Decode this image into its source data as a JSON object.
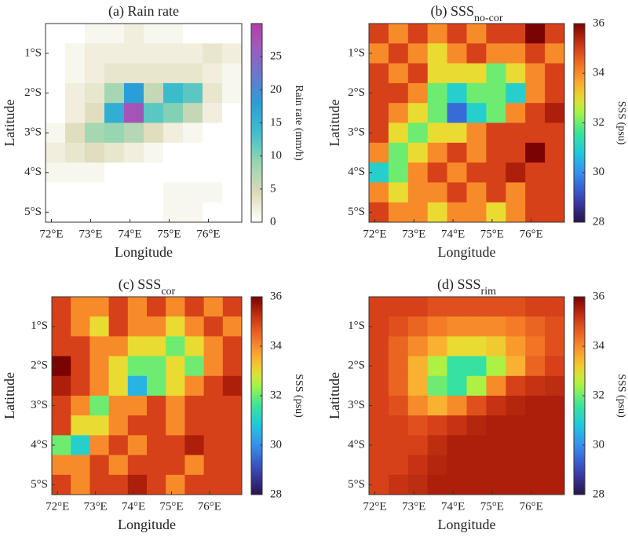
{
  "chart_data": [
    {
      "type": "heatmap",
      "title": "(a) Rain rate",
      "xlabel": "Longitude",
      "ylabel": "Latitude",
      "colorbar_label": "Rain rate (mm/h)",
      "colormap": "rain",
      "x": [
        72.1,
        72.6,
        73.1,
        73.6,
        74.1,
        74.6,
        75.1,
        75.6,
        76.1,
        76.6
      ],
      "y": [
        -0.5,
        -1.0,
        -1.5,
        -2.0,
        -2.5,
        -3.0,
        -3.5,
        -4.0,
        -4.5,
        -5.0
      ],
      "values": [
        [
          0,
          0,
          1,
          1,
          2,
          1,
          1,
          0,
          0,
          0
        ],
        [
          0,
          1,
          2,
          2,
          2,
          2,
          2,
          2,
          3,
          2
        ],
        [
          0,
          1,
          2,
          3,
          3,
          3,
          3,
          3,
          2,
          1
        ],
        [
          0,
          2,
          3,
          8,
          18,
          6,
          14,
          12,
          3,
          1
        ],
        [
          0,
          2,
          4,
          16,
          27,
          12,
          10,
          6,
          2,
          0
        ],
        [
          1,
          4,
          8,
          9,
          7,
          4,
          2,
          1,
          0,
          0
        ],
        [
          2,
          3,
          4,
          3,
          2,
          1,
          0,
          0,
          0,
          0
        ],
        [
          1,
          1,
          1,
          0,
          0,
          0,
          0,
          0,
          0,
          0
        ],
        [
          0,
          0,
          0,
          0,
          0,
          0,
          1,
          1,
          1,
          0
        ],
        [
          0,
          0,
          0,
          0,
          0,
          0,
          1,
          1,
          0,
          0
        ]
      ],
      "xlim": [
        71.85,
        76.85
      ],
      "ylim": [
        -5.25,
        -0.25
      ],
      "xticks": [
        {
          "value": 72,
          "label": "72°E"
        },
        {
          "value": 73,
          "label": "73°E"
        },
        {
          "value": 74,
          "label": "74°E"
        },
        {
          "value": 75,
          "label": "75°E"
        },
        {
          "value": 76,
          "label": "76°E"
        }
      ],
      "yticks": [
        {
          "value": -1,
          "label": "1°S"
        },
        {
          "value": -2,
          "label": "2°S"
        },
        {
          "value": -3,
          "label": "3°S"
        },
        {
          "value": -4,
          "label": "4°S"
        },
        {
          "value": -5,
          "label": "5°S"
        }
      ],
      "clim": [
        0,
        30
      ],
      "cticks": [
        0,
        5,
        10,
        15,
        20,
        25
      ]
    },
    {
      "type": "heatmap",
      "title": "(b) SSS",
      "title_subscript": "no-cor",
      "xlabel": "Longitude",
      "ylabel": "Latitude",
      "colorbar_label": "SSS (psu)",
      "colormap": "turbo",
      "x": [
        72.1,
        72.6,
        73.1,
        73.6,
        74.1,
        74.6,
        75.1,
        75.6,
        76.1,
        76.6
      ],
      "y": [
        -0.5,
        -1.0,
        -1.5,
        -2.0,
        -2.5,
        -3.0,
        -3.5,
        -4.0,
        -4.5,
        -5.0
      ],
      "values": [
        [
          35,
          34,
          35,
          34,
          35,
          34,
          35,
          35,
          36,
          35
        ],
        [
          34,
          35,
          34,
          33,
          34,
          35,
          34,
          34,
          35,
          34
        ],
        [
          35,
          34,
          35,
          33,
          33,
          33,
          32,
          33,
          34,
          35
        ],
        [
          35,
          35,
          34,
          32,
          31,
          32,
          32,
          31,
          34,
          35
        ],
        [
          35,
          34,
          33,
          32,
          29.5,
          31,
          32,
          34,
          35,
          35.5
        ],
        [
          35,
          33,
          32,
          33,
          33,
          34,
          35,
          35,
          35,
          35
        ],
        [
          34,
          32,
          33,
          34,
          35,
          34,
          35,
          35,
          36,
          35
        ],
        [
          31,
          32,
          34,
          35,
          34,
          35,
          35,
          35.5,
          35,
          35
        ],
        [
          34,
          33,
          34,
          34,
          35,
          34,
          35,
          34,
          35,
          35
        ],
        [
          35,
          34,
          34,
          33,
          34,
          34,
          33,
          34,
          35,
          35
        ]
      ],
      "xlim": [
        71.85,
        76.85
      ],
      "ylim": [
        -5.25,
        -0.25
      ],
      "xticks": [
        {
          "value": 72,
          "label": "72°E"
        },
        {
          "value": 73,
          "label": "73°E"
        },
        {
          "value": 74,
          "label": "74°E"
        },
        {
          "value": 75,
          "label": "75°E"
        },
        {
          "value": 76,
          "label": "76°E"
        }
      ],
      "yticks": [
        {
          "value": -1,
          "label": "1°S"
        },
        {
          "value": -2,
          "label": "2°S"
        },
        {
          "value": -3,
          "label": "3°S"
        },
        {
          "value": -4,
          "label": "4°S"
        },
        {
          "value": -5,
          "label": "5°S"
        }
      ],
      "clim": [
        28,
        36
      ],
      "cticks": [
        28,
        30,
        32,
        34,
        36
      ]
    },
    {
      "type": "heatmap",
      "title": "(c) SSS",
      "title_subscript": "cor",
      "xlabel": "Longitude",
      "ylabel": "Latitude",
      "colorbar_label": "SSS (psu)",
      "colormap": "turbo",
      "x": [
        72.1,
        72.6,
        73.1,
        73.6,
        74.1,
        74.6,
        75.1,
        75.6,
        76.1,
        76.6
      ],
      "y": [
        -0.5,
        -1.0,
        -1.5,
        -2.0,
        -2.5,
        -3.0,
        -3.5,
        -4.0,
        -4.5,
        -5.0
      ],
      "values": [
        [
          35,
          34,
          34,
          35,
          34,
          35,
          34,
          35,
          34,
          35
        ],
        [
          35,
          34,
          33,
          35,
          34,
          34,
          33,
          34,
          35,
          34
        ],
        [
          35,
          35,
          34,
          34,
          33,
          33,
          32,
          33,
          34,
          35
        ],
        [
          36,
          35,
          34,
          33,
          32,
          32,
          33,
          32,
          34,
          35
        ],
        [
          35.5,
          35,
          34,
          33,
          30.5,
          32,
          33,
          34,
          35,
          35.5
        ],
        [
          35,
          34,
          32,
          34,
          34,
          35,
          34,
          35,
          35,
          35
        ],
        [
          35,
          33,
          33,
          34,
          35,
          35,
          34,
          35,
          35,
          35
        ],
        [
          32,
          31,
          34,
          35,
          34,
          35,
          35,
          35.5,
          35,
          35
        ],
        [
          34,
          34,
          35,
          34,
          35,
          35,
          35,
          34,
          35,
          35
        ],
        [
          35,
          34,
          35,
          35,
          35.5,
          35,
          34,
          35,
          35,
          35
        ]
      ],
      "xlim": [
        71.85,
        76.85
      ],
      "ylim": [
        -5.25,
        -0.25
      ],
      "xticks": [
        {
          "value": 72,
          "label": "72°E"
        },
        {
          "value": 73,
          "label": "73°E"
        },
        {
          "value": 74,
          "label": "74°E"
        },
        {
          "value": 75,
          "label": "75°E"
        },
        {
          "value": 76,
          "label": "76°E"
        }
      ],
      "yticks": [
        {
          "value": -1,
          "label": "1°S"
        },
        {
          "value": -2,
          "label": "2°S"
        },
        {
          "value": -3,
          "label": "3°S"
        },
        {
          "value": -4,
          "label": "4°S"
        },
        {
          "value": -5,
          "label": "5°S"
        }
      ],
      "clim": [
        28,
        36
      ],
      "cticks": [
        28,
        30,
        32,
        34,
        36
      ]
    },
    {
      "type": "heatmap",
      "title": "(d) SSS",
      "title_subscript": "rim",
      "xlabel": "Longitude",
      "ylabel": "Latitude",
      "colorbar_label": "SSS (psu)",
      "colormap": "turbo",
      "x": [
        72.1,
        72.6,
        73.1,
        73.6,
        74.1,
        74.6,
        75.1,
        75.6,
        76.1,
        76.6
      ],
      "y": [
        -0.5,
        -1.0,
        -1.5,
        -2.0,
        -2.5,
        -3.0,
        -3.5,
        -4.0,
        -4.5,
        -5.0
      ],
      "values": [
        [
          35,
          35,
          35,
          34.8,
          34.8,
          34.8,
          34.8,
          34.8,
          35,
          35
        ],
        [
          35,
          34.8,
          34.5,
          34.2,
          34,
          34,
          34,
          34.2,
          34.5,
          34.8
        ],
        [
          35,
          34.5,
          34,
          33.5,
          33,
          33,
          33.2,
          33.8,
          34.3,
          34.8
        ],
        [
          35,
          34.5,
          33.5,
          32.5,
          31.5,
          31.5,
          32.5,
          33.5,
          34.5,
          35
        ],
        [
          35,
          34.5,
          33.5,
          32,
          31.5,
          32.5,
          34,
          35,
          35.2,
          35.3
        ],
        [
          35,
          34.8,
          34,
          33.5,
          34,
          34.8,
          35.2,
          35.4,
          35.5,
          35.5
        ],
        [
          35,
          35,
          34.8,
          35,
          35.2,
          35.4,
          35.5,
          35.5,
          35.5,
          35.5
        ],
        [
          35,
          35,
          35,
          35.3,
          35.5,
          35.5,
          35.5,
          35.5,
          35.5,
          35.5
        ],
        [
          35,
          35,
          35.2,
          35.4,
          35.5,
          35.5,
          35.5,
          35.5,
          35.5,
          35.5
        ],
        [
          35,
          35.2,
          35.3,
          35.5,
          35.5,
          35.5,
          35.5,
          35.5,
          35.5,
          35.5
        ]
      ],
      "xlim": [
        71.85,
        76.85
      ],
      "ylim": [
        -5.25,
        -0.25
      ],
      "xticks": [
        {
          "value": 72,
          "label": "72°E"
        },
        {
          "value": 73,
          "label": "73°E"
        },
        {
          "value": 74,
          "label": "74°E"
        },
        {
          "value": 75,
          "label": "75°E"
        },
        {
          "value": 76,
          "label": "76°E"
        }
      ],
      "yticks": [
        {
          "value": -1,
          "label": "1°S"
        },
        {
          "value": -2,
          "label": "2°S"
        },
        {
          "value": -3,
          "label": "3°S"
        },
        {
          "value": -4,
          "label": "4°S"
        },
        {
          "value": -5,
          "label": "5°S"
        }
      ],
      "clim": [
        28,
        36
      ],
      "cticks": [
        28,
        30,
        32,
        34,
        36
      ]
    }
  ]
}
